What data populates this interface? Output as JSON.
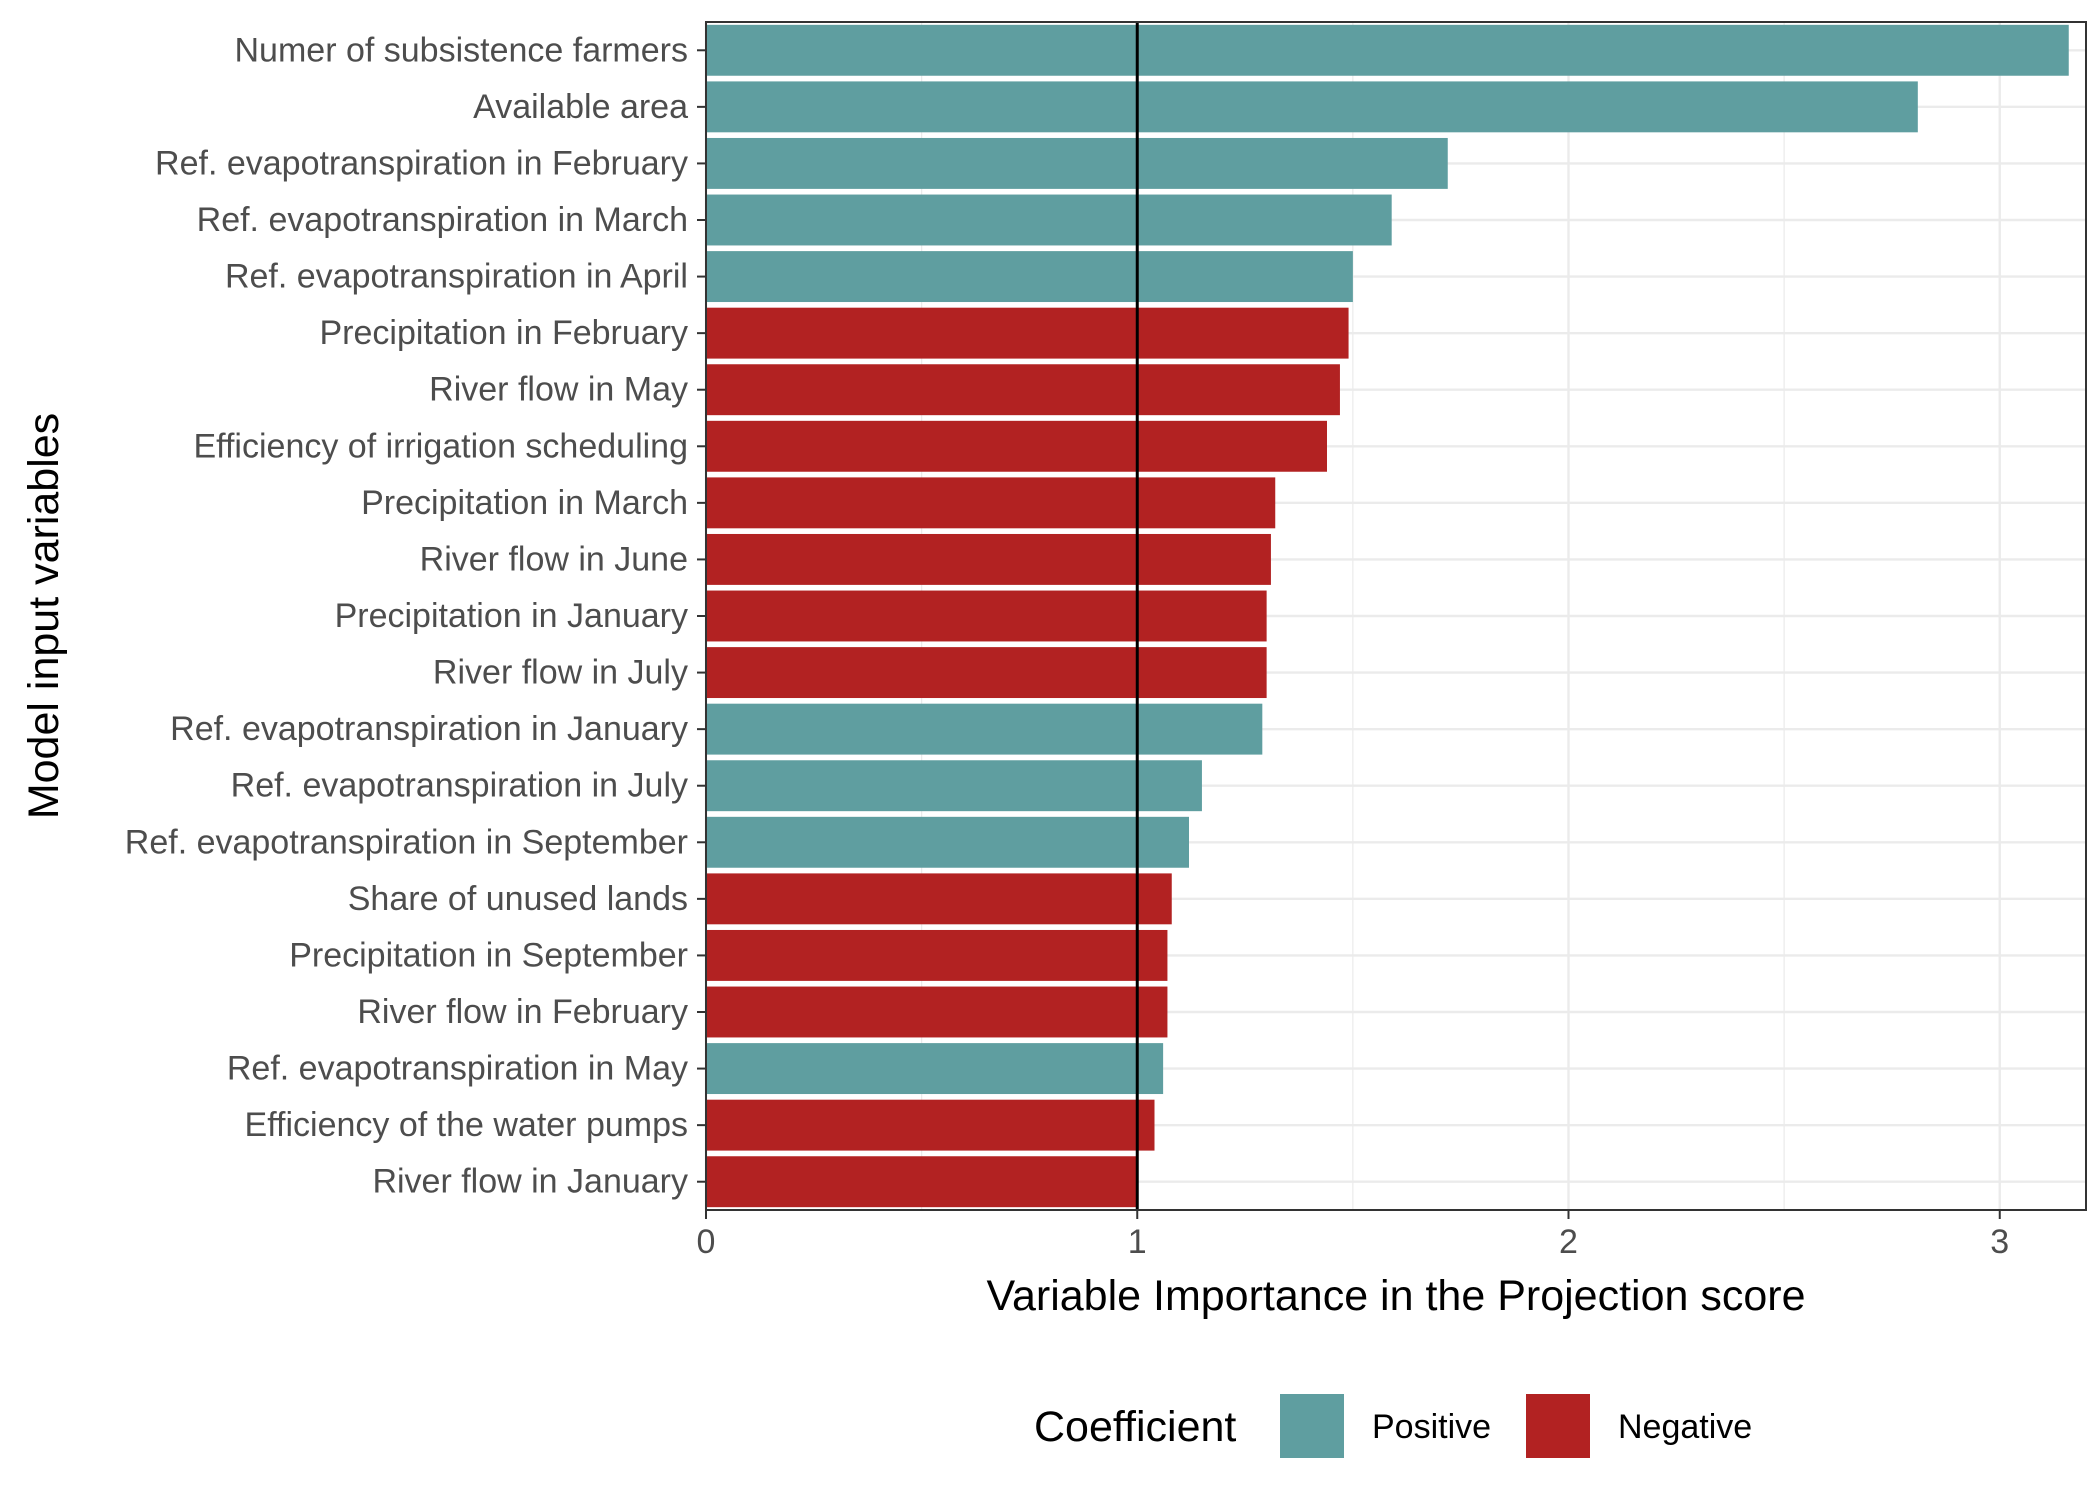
{
  "chart_data": {
    "type": "bar",
    "orientation": "horizontal",
    "xlabel": "Variable Importance in the Projection score",
    "ylabel": "Model input variables",
    "xlim": [
      0,
      3.2
    ],
    "x_ticks": [
      0,
      1,
      2,
      3
    ],
    "reference_line": 1,
    "grid": true,
    "categories": [
      "Numer of subsistence farmers",
      "Available area",
      "Ref. evapotranspiration in February",
      "Ref. evapotranspiration in March",
      "Ref. evapotranspiration in April",
      "Precipitation in February",
      "River flow in May",
      "Efficiency of irrigation scheduling",
      "Precipitation in March",
      "River flow in June",
      "Precipitation in January",
      "River flow in July",
      "Ref. evapotranspiration in January",
      "Ref. evapotranspiration in July",
      "Ref. evapotranspiration in September",
      "Share of unused lands",
      "Precipitation in September",
      "River flow in February",
      "Ref. evapotranspiration in May",
      "Efficiency of the water pumps",
      "River flow in January"
    ],
    "values": [
      3.16,
      2.81,
      1.72,
      1.59,
      1.5,
      1.49,
      1.47,
      1.44,
      1.32,
      1.31,
      1.3,
      1.3,
      1.29,
      1.15,
      1.12,
      1.08,
      1.07,
      1.07,
      1.06,
      1.04,
      1.0
    ],
    "coefficient": [
      "Positive",
      "Positive",
      "Positive",
      "Positive",
      "Positive",
      "Negative",
      "Negative",
      "Negative",
      "Negative",
      "Negative",
      "Negative",
      "Negative",
      "Positive",
      "Positive",
      "Positive",
      "Negative",
      "Negative",
      "Negative",
      "Positive",
      "Negative",
      "Negative"
    ],
    "legend": {
      "title": "Coefficient",
      "position": "bottom",
      "entries": [
        {
          "label": "Positive",
          "color": "#5f9ea0"
        },
        {
          "label": "Negative",
          "color": "#b22222"
        }
      ]
    }
  }
}
